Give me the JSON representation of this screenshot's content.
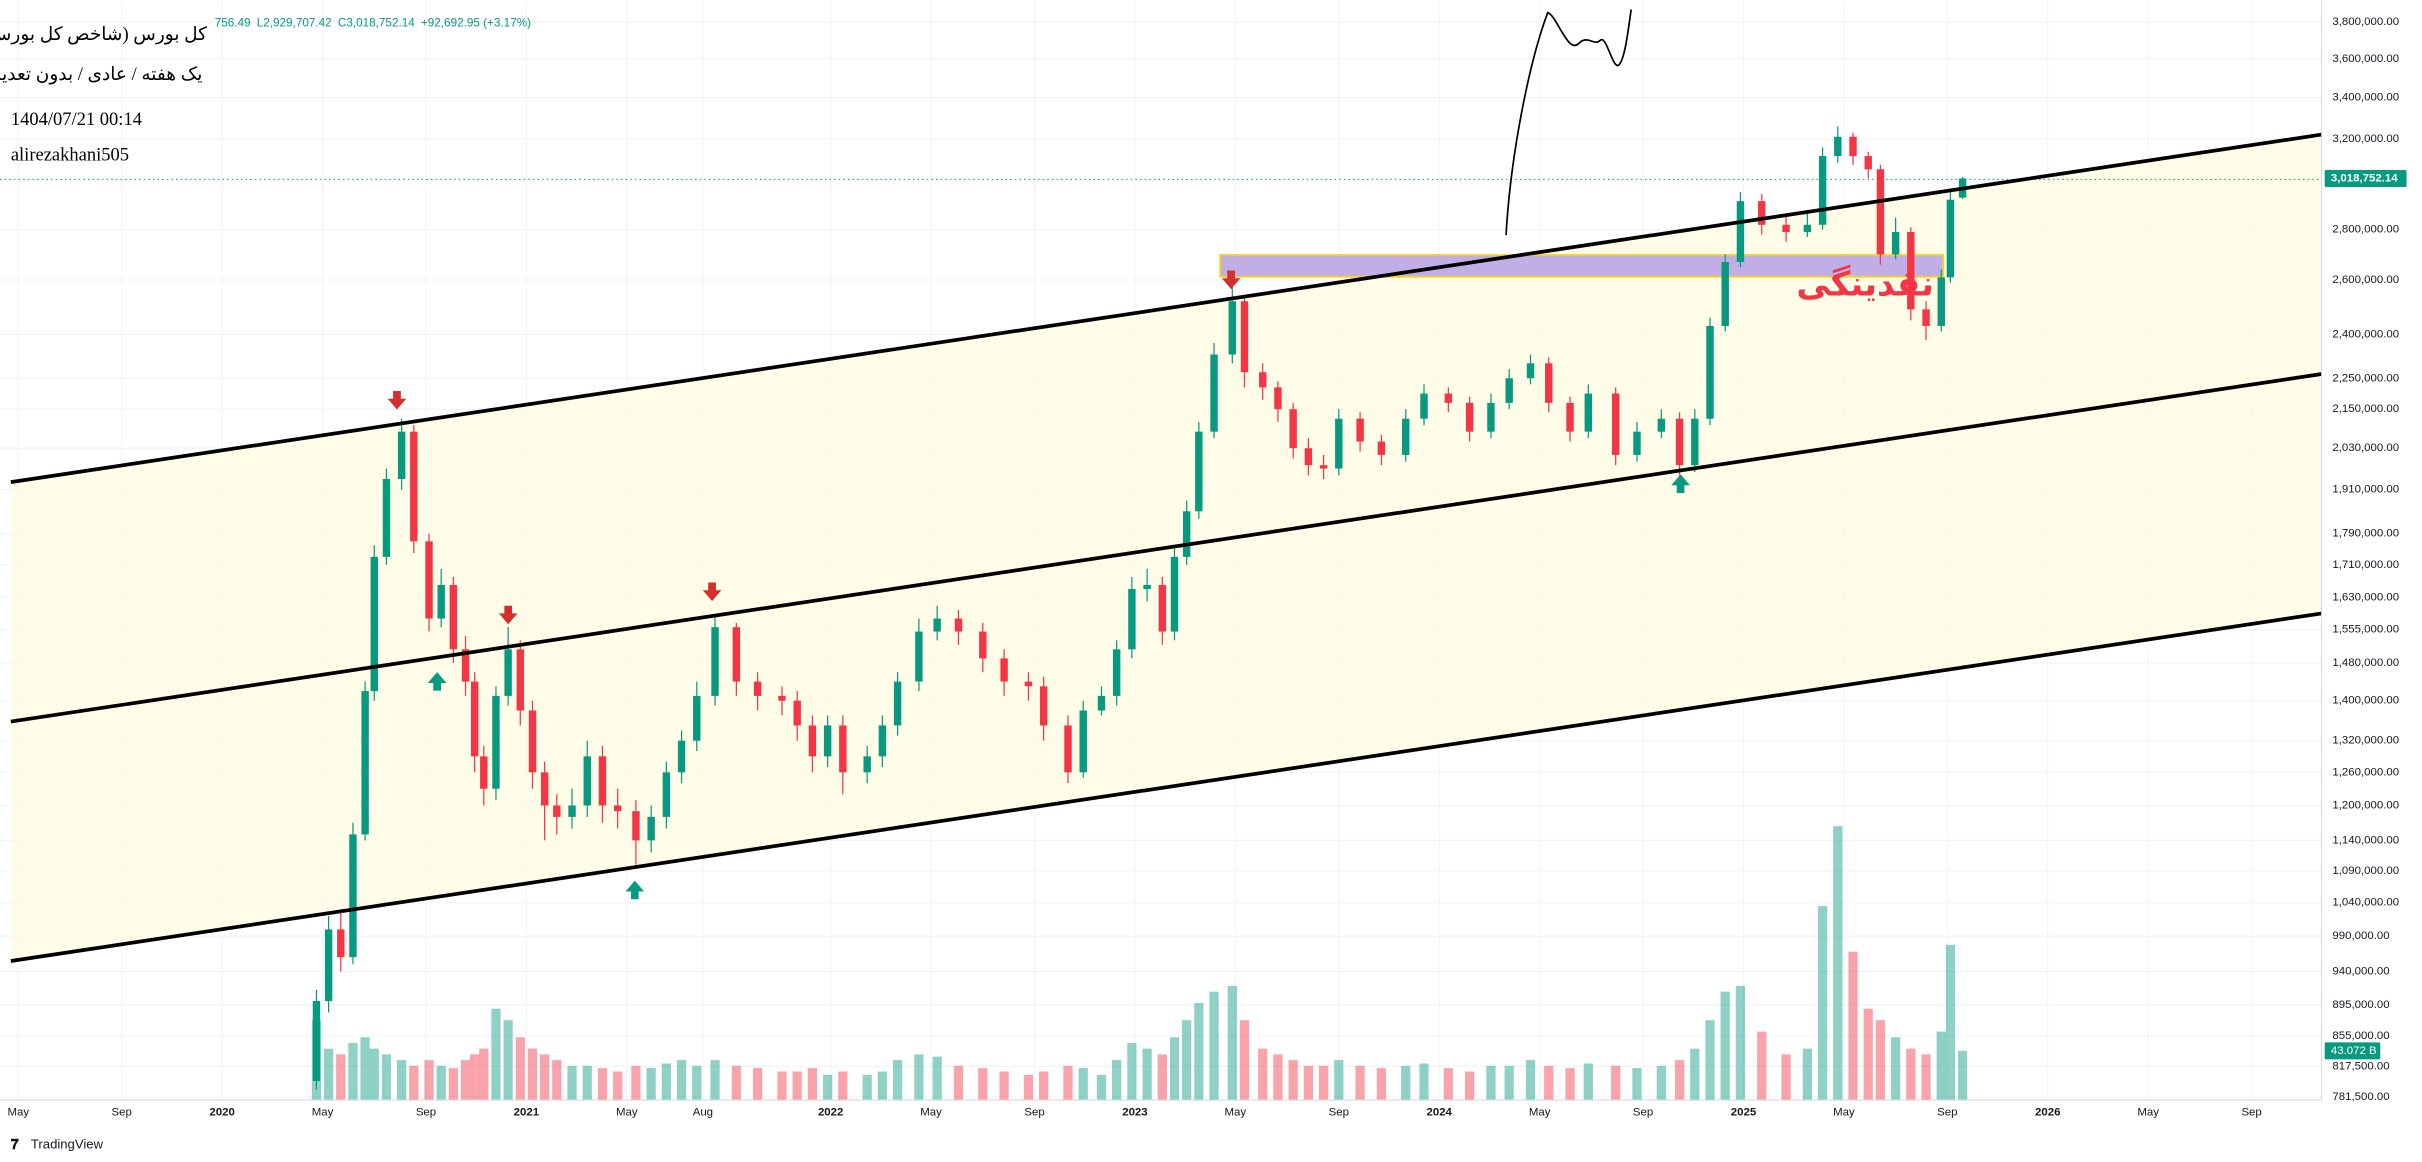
{
  "chart_data": {
    "type": "candlestick",
    "title": "کل بورس (شاخص کل بورس)",
    "subtitle": "یک هفته / عادی / بدون تعدیل",
    "date_stamp": "1404/07/21 00:14",
    "author": "alirezakhani505",
    "ohlc_legend": [
      "756.49",
      "L2,929,707.42",
      "C3,018,752.14",
      "+92,692.95 (+3.17%)"
    ],
    "annotation": "نقدینگی",
    "up_color": "#089981",
    "down_color": "#f23645",
    "log_scale": true,
    "grid": true,
    "x": [
      2020.31,
      2020.35,
      2020.39,
      2020.43,
      2020.47,
      2020.5,
      2020.54,
      2020.59,
      2020.63,
      2020.68,
      2020.72,
      2020.76,
      2020.8,
      2020.83,
      2020.86,
      2020.9,
      2020.94,
      2020.98,
      2021.02,
      2021.06,
      2021.1,
      2021.15,
      2021.2,
      2021.25,
      2021.3,
      2021.36,
      2021.41,
      2021.46,
      2021.51,
      2021.56,
      2021.62,
      2021.69,
      2021.76,
      2021.84,
      2021.89,
      2021.94,
      2021.99,
      2022.04,
      2022.12,
      2022.17,
      2022.22,
      2022.29,
      2022.35,
      2022.42,
      2022.5,
      2022.57,
      2022.65,
      2022.7,
      2022.78,
      2022.83,
      2022.89,
      2022.94,
      2022.99,
      2023.04,
      2023.09,
      2023.13,
      2023.17,
      2023.21,
      2023.26,
      2023.32,
      2023.36,
      2023.42,
      2023.47,
      2023.52,
      2023.57,
      2023.62,
      2023.67,
      2023.74,
      2023.81,
      2023.89,
      2023.95,
      2024.03,
      2024.1,
      2024.17,
      2024.23,
      2024.3,
      2024.36,
      2024.43,
      2024.49,
      2024.58,
      2024.65,
      2024.73,
      2024.79,
      2024.84,
      2024.89,
      2024.94,
      2024.99,
      2025.06,
      2025.14,
      2025.21,
      2025.26,
      2025.31,
      2025.36,
      2025.41,
      2025.45,
      2025.5,
      2025.55,
      2025.6,
      2025.65,
      2025.68,
      2025.72
    ],
    "open": [
      800000,
      900000,
      1000000,
      960000,
      1150000,
      1420000,
      1730000,
      1940000,
      2080000,
      1770000,
      1580000,
      1660000,
      1510000,
      1440000,
      1290000,
      1230000,
      1410000,
      1510000,
      1380000,
      1260000,
      1200000,
      1180000,
      1200000,
      1290000,
      1200000,
      1190000,
      1140000,
      1180000,
      1260000,
      1320000,
      1410000,
      1560000,
      1440000,
      1410000,
      1400000,
      1350000,
      1290000,
      1350000,
      1260000,
      1290000,
      1350000,
      1440000,
      1550000,
      1580000,
      1550000,
      1490000,
      1440000,
      1430000,
      1350000,
      1260000,
      1380000,
      1410000,
      1510000,
      1650000,
      1660000,
      1550000,
      1730000,
      1850000,
      2080000,
      2330000,
      2520000,
      2270000,
      2220000,
      2150000,
      2030000,
      1980000,
      1970000,
      2120000,
      2050000,
      2010000,
      2120000,
      2200000,
      2170000,
      2080000,
      2170000,
      2250000,
      2300000,
      2170000,
      2080000,
      2200000,
      2010000,
      2080000,
      2120000,
      1980000,
      2120000,
      2430000,
      2670000,
      2920000,
      2820000,
      2790000,
      2820000,
      3120000,
      3210000,
      3120000,
      3060000,
      2700000,
      2790000,
      2490000,
      2430000,
      2610000,
      2935000
    ],
    "high": [
      915000,
      1020000,
      1030000,
      1170000,
      1440000,
      1760000,
      1970000,
      2120000,
      2100000,
      1790000,
      1700000,
      1680000,
      1540000,
      1460000,
      1310000,
      1430000,
      1560000,
      1530000,
      1400000,
      1280000,
      1220000,
      1230000,
      1320000,
      1310000,
      1230000,
      1210000,
      1200000,
      1280000,
      1340000,
      1440000,
      1590000,
      1570000,
      1460000,
      1430000,
      1420000,
      1370000,
      1370000,
      1370000,
      1310000,
      1370000,
      1460000,
      1580000,
      1610000,
      1600000,
      1570000,
      1510000,
      1460000,
      1450000,
      1370000,
      1400000,
      1430000,
      1530000,
      1680000,
      1700000,
      1680000,
      1760000,
      1880000,
      2110000,
      2370000,
      2580000,
      2540000,
      2300000,
      2240000,
      2170000,
      2060000,
      2010000,
      2150000,
      2140000,
      2070000,
      2150000,
      2230000,
      2220000,
      2190000,
      2200000,
      2280000,
      2330000,
      2320000,
      2190000,
      2230000,
      2220000,
      2110000,
      2150000,
      2140000,
      2150000,
      2460000,
      2700000,
      2960000,
      2950000,
      2860000,
      2880000,
      3160000,
      3260000,
      3230000,
      3140000,
      3080000,
      2850000,
      2810000,
      2520000,
      2640000,
      2960000,
      3025756.49
    ],
    "low": [
      790000,
      885000,
      940000,
      950000,
      1140000,
      1400000,
      1710000,
      1910000,
      1740000,
      1550000,
      1560000,
      1480000,
      1410000,
      1260000,
      1200000,
      1210000,
      1390000,
      1350000,
      1230000,
      1140000,
      1150000,
      1160000,
      1180000,
      1170000,
      1160000,
      1100000,
      1120000,
      1160000,
      1240000,
      1300000,
      1390000,
      1410000,
      1380000,
      1370000,
      1320000,
      1260000,
      1270000,
      1220000,
      1240000,
      1270000,
      1330000,
      1420000,
      1530000,
      1520000,
      1460000,
      1410000,
      1400000,
      1320000,
      1240000,
      1250000,
      1370000,
      1390000,
      1490000,
      1620000,
      1520000,
      1530000,
      1710000,
      1830000,
      2060000,
      2300000,
      2220000,
      2180000,
      2110000,
      2000000,
      1950000,
      1940000,
      1950000,
      2020000,
      1980000,
      1990000,
      2100000,
      2140000,
      2050000,
      2060000,
      2150000,
      2230000,
      2140000,
      2050000,
      2060000,
      1980000,
      1990000,
      2060000,
      1950000,
      1960000,
      2100000,
      2410000,
      2650000,
      2780000,
      2750000,
      2770000,
      2800000,
      3090000,
      3080000,
      3020000,
      2660000,
      2680000,
      2450000,
      2380000,
      2410000,
      2590000,
      2929707.42
    ],
    "close": [
      900000,
      1000000,
      960000,
      1150000,
      1420000,
      1730000,
      1940000,
      2080000,
      1770000,
      1580000,
      1660000,
      1510000,
      1440000,
      1290000,
      1230000,
      1410000,
      1510000,
      1380000,
      1260000,
      1200000,
      1180000,
      1200000,
      1290000,
      1200000,
      1190000,
      1140000,
      1180000,
      1260000,
      1320000,
      1410000,
      1560000,
      1440000,
      1410000,
      1400000,
      1350000,
      1290000,
      1350000,
      1260000,
      1290000,
      1350000,
      1440000,
      1550000,
      1580000,
      1550000,
      1490000,
      1440000,
      1430000,
      1350000,
      1260000,
      1380000,
      1410000,
      1510000,
      1650000,
      1660000,
      1550000,
      1730000,
      1850000,
      2080000,
      2330000,
      2520000,
      2270000,
      2220000,
      2150000,
      2030000,
      1980000,
      1970000,
      2120000,
      2050000,
      2010000,
      2120000,
      2200000,
      2170000,
      2080000,
      2170000,
      2250000,
      2300000,
      2170000,
      2080000,
      2200000,
      2010000,
      2080000,
      2120000,
      1980000,
      2120000,
      2430000,
      2670000,
      2920000,
      2820000,
      2790000,
      2820000,
      3120000,
      3210000,
      3120000,
      3060000,
      2700000,
      2790000,
      2490000,
      2430000,
      2610000,
      2926059.19,
      3018752.14
    ],
    "last_price_label": "3,018,752.14",
    "volume": {
      "values": [
        70,
        45,
        40,
        50,
        55,
        45,
        40,
        35,
        30,
        35,
        30,
        28,
        35,
        40,
        45,
        80,
        70,
        55,
        45,
        40,
        35,
        30,
        30,
        28,
        25,
        30,
        28,
        32,
        35,
        30,
        35,
        30,
        28,
        25,
        25,
        28,
        22,
        25,
        22,
        25,
        35,
        40,
        38,
        30,
        28,
        25,
        22,
        25,
        30,
        28,
        22,
        35,
        50,
        45,
        40,
        55,
        70,
        85,
        95,
        100,
        70,
        45,
        40,
        35,
        30,
        30,
        35,
        30,
        28,
        30,
        32,
        28,
        25,
        30,
        30,
        35,
        30,
        28,
        32,
        30,
        28,
        30,
        35,
        45,
        70,
        95,
        100,
        60,
        40,
        45,
        170,
        240,
        130,
        80,
        70,
        55,
        45,
        40,
        60,
        136,
        43.072
      ],
      "ylim": [
        0,
        260
      ],
      "last_label": "43.072 B"
    },
    "xlim": [
      2019.27,
      2026.9
    ],
    "xticks": [
      {
        "value": 2019.33,
        "label": "May"
      },
      {
        "value": 2019.67,
        "label": "Sep"
      },
      2020,
      {
        "value": 2020.33,
        "label": "May"
      },
      {
        "value": 2020.67,
        "label": "Sep"
      },
      2021,
      {
        "value": 2021.33,
        "label": "May"
      },
      {
        "value": 2021.58,
        "label": "Aug"
      },
      2022,
      {
        "value": 2022.33,
        "label": "May"
      },
      {
        "value": 2022.67,
        "label": "Sep"
      },
      2023,
      {
        "value": 2023.33,
        "label": "May"
      },
      {
        "value": 2023.67,
        "label": "Sep"
      },
      2024,
      {
        "value": 2024.33,
        "label": "May"
      },
      {
        "value": 2024.67,
        "label": "Sep"
      },
      2025,
      {
        "value": 2025.33,
        "label": "May"
      },
      {
        "value": 2025.67,
        "label": "Sep"
      },
      2026,
      {
        "value": 2026.33,
        "label": "May"
      },
      {
        "value": 2026.67,
        "label": "Sep"
      }
    ],
    "ylim": [
      778000,
      3880000
    ],
    "yticks": [
      {
        "value": 3800000,
        "label": "3,800,000.00"
      },
      {
        "value": 3600000,
        "label": "3,600,000.00"
      },
      {
        "value": 3400000,
        "label": "3,400,000.00"
      },
      {
        "value": 3200000,
        "label": "3,200,000.00"
      },
      {
        "value": 2800000,
        "label": "2,800,000.00"
      },
      {
        "value": 2600000,
        "label": "2,600,000.00"
      },
      {
        "value": 2400000,
        "label": "2,400,000.00"
      },
      {
        "value": 2250000,
        "label": "2,250,000.00"
      },
      {
        "value": 2150000,
        "label": "2,150,000.00"
      },
      {
        "value": 2030000,
        "label": "2,030,000.00"
      },
      {
        "value": 1910000,
        "label": "1,910,000.00"
      },
      {
        "value": 1790000,
        "label": "1,790,000.00"
      },
      {
        "value": 1710000,
        "label": "1,710,000.00"
      },
      {
        "value": 1630000,
        "label": "1,630,000.00"
      },
      {
        "value": 1555000,
        "label": "1,555,000.00"
      },
      {
        "value": 1480000,
        "label": "1,480,000.00"
      },
      {
        "value": 1400000,
        "label": "1,400,000.00"
      },
      {
        "value": 1320000,
        "label": "1,320,000.00"
      },
      {
        "value": 1260000,
        "label": "1,260,000.00"
      },
      {
        "value": 1200000,
        "label": "1,200,000.00"
      },
      {
        "value": 1140000,
        "label": "1,140,000.00"
      },
      {
        "value": 1090000,
        "label": "1,090,000.00"
      },
      {
        "value": 1040000,
        "label": "1,040,000.00"
      },
      {
        "value": 990000,
        "label": "990,000.00"
      },
      {
        "value": 940000,
        "label": "940,000.00"
      },
      {
        "value": 895000,
        "label": "895,000.00"
      },
      {
        "value": 855000,
        "label": "855,000.00"
      },
      {
        "value": 817500,
        "label": "817,500.00"
      },
      {
        "value": 781500,
        "label": "781,500.00"
      }
    ]
  },
  "brand": "TradingView"
}
